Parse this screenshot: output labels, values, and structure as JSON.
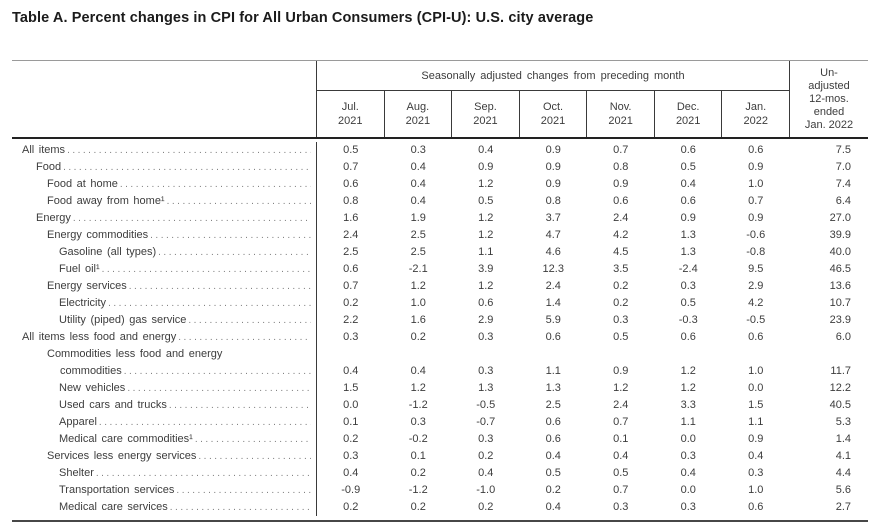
{
  "page": {
    "title": "Table A. Percent changes in CPI for All Urban Consumers (CPI-U): U.S. city average"
  },
  "colors": {
    "title_text": "#1b1b1b",
    "body_text": "#3d3d3d",
    "rule_light": "#9a9a9a",
    "rule_dark": "#222222"
  },
  "table": {
    "header": {
      "sa_title": "Seasonally adjusted changes from preceding month",
      "months": [
        {
          "month": "Jul.",
          "year": "2021"
        },
        {
          "month": "Aug.",
          "year": "2021"
        },
        {
          "month": "Sep.",
          "year": "2021"
        },
        {
          "month": "Oct.",
          "year": "2021"
        },
        {
          "month": "Nov.",
          "year": "2021"
        },
        {
          "month": "Dec.",
          "year": "2021"
        },
        {
          "month": "Jan.",
          "year": "2022"
        }
      ],
      "unadjusted_lines": [
        "Un-",
        "adjusted",
        "12-mos.",
        "ended",
        "Jan. 2022"
      ]
    },
    "rows": [
      {
        "label": "All items",
        "indent": 0,
        "values": [
          "0.5",
          "0.3",
          "0.4",
          "0.9",
          "0.7",
          "0.6",
          "0.6",
          "7.5"
        ]
      },
      {
        "label": "Food",
        "indent": 1,
        "values": [
          "0.7",
          "0.4",
          "0.9",
          "0.9",
          "0.8",
          "0.5",
          "0.9",
          "7.0"
        ]
      },
      {
        "label": "Food at home",
        "indent": 2,
        "values": [
          "0.6",
          "0.4",
          "1.2",
          "0.9",
          "0.9",
          "0.4",
          "1.0",
          "7.4"
        ]
      },
      {
        "label": "Food away from home¹",
        "indent": 2,
        "values": [
          "0.8",
          "0.4",
          "0.5",
          "0.8",
          "0.6",
          "0.6",
          "0.7",
          "6.4"
        ]
      },
      {
        "label": "Energy",
        "indent": 1,
        "values": [
          "1.6",
          "1.9",
          "1.2",
          "3.7",
          "2.4",
          "0.9",
          "0.9",
          "27.0"
        ]
      },
      {
        "label": "Energy commodities",
        "indent": 2,
        "values": [
          "2.4",
          "2.5",
          "1.2",
          "4.7",
          "4.2",
          "1.3",
          "-0.6",
          "39.9"
        ]
      },
      {
        "label": "Gasoline (all types)",
        "indent": 3,
        "values": [
          "2.5",
          "2.5",
          "1.1",
          "4.6",
          "4.5",
          "1.3",
          "-0.8",
          "40.0"
        ]
      },
      {
        "label": "Fuel oil¹",
        "indent": 3,
        "values": [
          "0.6",
          "-2.1",
          "3.9",
          "12.3",
          "3.5",
          "-2.4",
          "9.5",
          "46.5"
        ]
      },
      {
        "label": "Energy services",
        "indent": 2,
        "values": [
          "0.7",
          "1.2",
          "1.2",
          "2.4",
          "0.2",
          "0.3",
          "2.9",
          "13.6"
        ]
      },
      {
        "label": "Electricity",
        "indent": 3,
        "values": [
          "0.2",
          "1.0",
          "0.6",
          "1.4",
          "0.2",
          "0.5",
          "4.2",
          "10.7"
        ]
      },
      {
        "label": "Utility (piped) gas service",
        "indent": 3,
        "values": [
          "2.2",
          "1.6",
          "2.9",
          "5.9",
          "0.3",
          "-0.3",
          "-0.5",
          "23.9"
        ]
      },
      {
        "label": "All items less food and energy",
        "indent": 0,
        "values": [
          "0.3",
          "0.2",
          "0.3",
          "0.6",
          "0.5",
          "0.6",
          "0.6",
          "6.0"
        ]
      },
      {
        "label": "Commodities less food and energy",
        "label2": "commodities",
        "indent": 2,
        "values": [
          "0.4",
          "0.4",
          "0.3",
          "1.1",
          "0.9",
          "1.2",
          "1.0",
          "11.7"
        ]
      },
      {
        "label": "New vehicles",
        "indent": 3,
        "values": [
          "1.5",
          "1.2",
          "1.3",
          "1.3",
          "1.2",
          "1.2",
          "0.0",
          "12.2"
        ]
      },
      {
        "label": "Used cars and trucks",
        "indent": 3,
        "values": [
          "0.0",
          "-1.2",
          "-0.5",
          "2.5",
          "2.4",
          "3.3",
          "1.5",
          "40.5"
        ]
      },
      {
        "label": "Apparel",
        "indent": 3,
        "values": [
          "0.1",
          "0.3",
          "-0.7",
          "0.6",
          "0.7",
          "1.1",
          "1.1",
          "5.3"
        ]
      },
      {
        "label": "Medical care commodities¹",
        "indent": 3,
        "values": [
          "0.2",
          "-0.2",
          "0.3",
          "0.6",
          "0.1",
          "0.0",
          "0.9",
          "1.4"
        ]
      },
      {
        "label": "Services less energy services",
        "indent": 2,
        "values": [
          "0.3",
          "0.1",
          "0.2",
          "0.4",
          "0.4",
          "0.3",
          "0.4",
          "4.1"
        ]
      },
      {
        "label": "Shelter",
        "indent": 3,
        "values": [
          "0.4",
          "0.2",
          "0.4",
          "0.5",
          "0.5",
          "0.4",
          "0.3",
          "4.4"
        ]
      },
      {
        "label": "Transportation services",
        "indent": 3,
        "values": [
          "-0.9",
          "-1.2",
          "-1.0",
          "0.2",
          "0.7",
          "0.0",
          "1.0",
          "5.6"
        ]
      },
      {
        "label": "Medical care services",
        "indent": 3,
        "values": [
          "0.2",
          "0.2",
          "0.2",
          "0.4",
          "0.3",
          "0.3",
          "0.6",
          "2.7"
        ]
      }
    ]
  }
}
